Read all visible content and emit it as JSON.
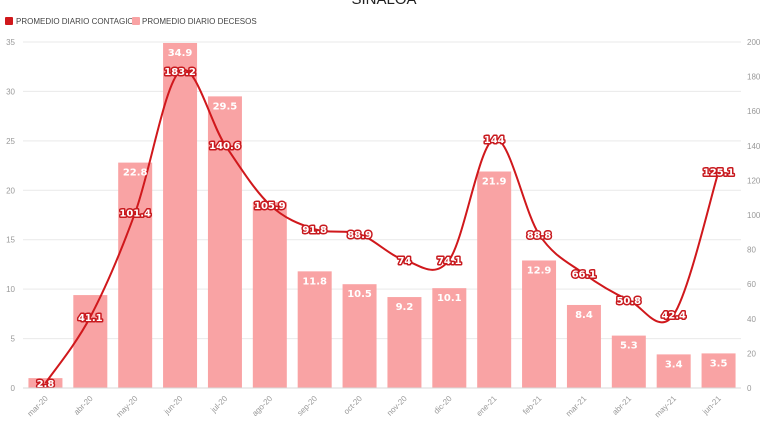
{
  "chart_data": {
    "type": "bar",
    "title": "SINALOA",
    "categories": [
      "mar-20",
      "abr-20",
      "may-20",
      "jun-20",
      "jul-20",
      "ago-20",
      "sep-20",
      "oct-20",
      "nov-20",
      "dic-20",
      "ene-21",
      "feb-21",
      "mar-21",
      "abr-21",
      "may-21",
      "jun-21"
    ],
    "series": [
      {
        "name": "PROMEDIO DIARIO DECESOS",
        "type": "bar",
        "axis": "left",
        "color": "#f9a3a4",
        "values": [
          1.0,
          9.4,
          22.8,
          34.9,
          29.5,
          18.8,
          11.8,
          10.5,
          9.2,
          10.1,
          21.9,
          12.9,
          8.4,
          5.3,
          3.4,
          3.5
        ],
        "labels": [
          "",
          "",
          "22.8",
          "34.9",
          "29.5",
          "",
          "11.8",
          "10.5",
          "9.2",
          "10.1",
          "21.9",
          "12.9",
          "8.4",
          "5.3",
          "3.4",
          "3.5"
        ]
      },
      {
        "name": "PROMEDIO DIARIO CONTAGIOS",
        "type": "line",
        "axis": "right",
        "color": "#d0181c",
        "values": [
          2.8,
          41.1,
          101.4,
          183.2,
          140.6,
          105.9,
          91.8,
          88.9,
          74,
          74.1,
          144,
          88.8,
          66.1,
          50.8,
          42.4,
          125.1
        ],
        "labels": [
          "2.8",
          "41.1",
          "101.4",
          "183.2",
          "140.6",
          "105.9",
          "91.8",
          "88.9",
          "74",
          "74.1",
          "144",
          "88.8",
          "66.1",
          "50.8",
          "42.4",
          "125.1"
        ]
      }
    ],
    "y_left": {
      "min": 0,
      "max": 35,
      "ticks": [
        "0",
        "5",
        "10",
        "15",
        "20",
        "25",
        "30",
        "35"
      ]
    },
    "y_right": {
      "min": 0,
      "max": 200,
      "ticks": [
        "0",
        "20",
        "40",
        "60",
        "80",
        "100",
        "120",
        "140",
        "160",
        "180",
        "200"
      ]
    },
    "grid": true,
    "legend_position": "top-left"
  }
}
